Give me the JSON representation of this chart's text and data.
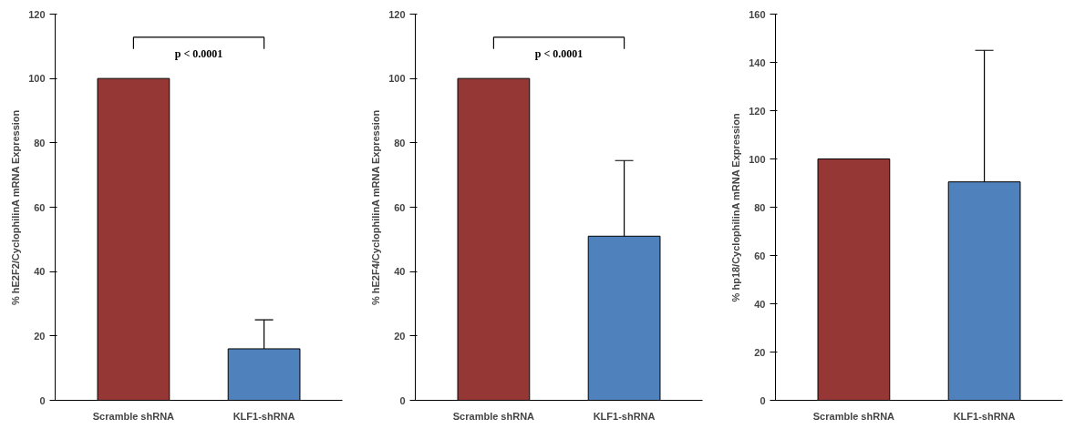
{
  "chart_data": [
    {
      "type": "bar",
      "ylabel": "% hE2F2/CyclophilinA mRNA Expression",
      "categories": [
        "Scramble shRNA",
        "KLF1-shRNA"
      ],
      "values": [
        100,
        16
      ],
      "colors": [
        "#953735",
        "#4f81bd"
      ],
      "errors": [
        null,
        [
          16,
          25
        ]
      ],
      "ylim": [
        0,
        120
      ],
      "yticks": [
        0,
        20,
        40,
        60,
        80,
        100,
        120
      ],
      "annotations": [
        "p < 0.0001"
      ]
    },
    {
      "type": "bar",
      "ylabel": "% hE2F4/CyclophilinA mRNA Expression",
      "categories": [
        "Scramble shRNA",
        "KLF1-shRNA"
      ],
      "values": [
        100,
        51
      ],
      "colors": [
        "#953735",
        "#4f81bd"
      ],
      "errors": [
        null,
        [
          51,
          74.5
        ]
      ],
      "ylim": [
        0,
        120
      ],
      "yticks": [
        0,
        20,
        40,
        60,
        80,
        100,
        120
      ],
      "annotations": [
        "p < 0.0001"
      ]
    },
    {
      "type": "bar",
      "ylabel": "% hp18/CyclophilinA mRNA Expression",
      "categories": [
        "Scramble shRNA",
        "KLF1-shRNA"
      ],
      "values": [
        100,
        90.5
      ],
      "colors": [
        "#953735",
        "#4f81bd"
      ],
      "errors": [
        null,
        [
          90.5,
          145
        ]
      ],
      "ylim": [
        0,
        160
      ],
      "yticks": [
        0,
        20,
        40,
        60,
        80,
        100,
        120,
        140,
        160
      ]
    }
  ]
}
